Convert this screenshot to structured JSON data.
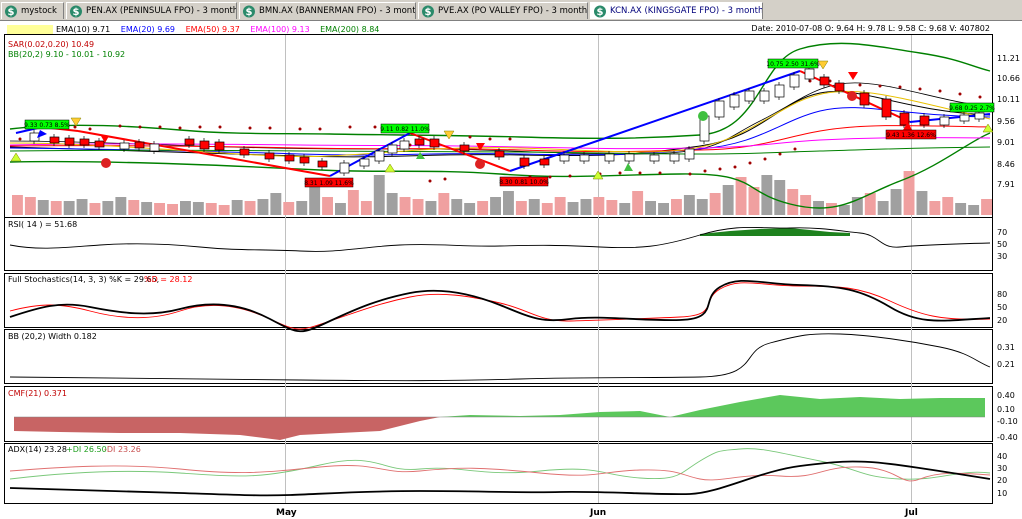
{
  "tabs": [
    {
      "label": "mystock",
      "active": false
    },
    {
      "label": "PEN.AX (PENINSULA FPO) - 3 months Daily",
      "active": false
    },
    {
      "label": "BMN.AX (BANNERMAN FPO) - 3 months Daily",
      "active": false
    },
    {
      "label": "PVE.AX (PO VALLEY FPO) - 3 months Daily",
      "active": false
    },
    {
      "label": "KCN.AX (KINGSGATE FPO) - 3 months Daily",
      "active": true
    }
  ],
  "date_readout": "Date: 2010-07-08 O: 9.64 H: 9.78 L: 9.58 C: 9.68 V: 407802",
  "main_panel": {
    "legend_row1": [
      {
        "text": "",
        "color": "#c8b400"
      },
      {
        "text": "EMA(10) 9.71",
        "color": "#000000"
      },
      {
        "text": "EMA(20) 9.69",
        "color": "#0000ff"
      },
      {
        "text": "EMA(50) 9.37",
        "color": "#ff0000"
      },
      {
        "text": "EMA(100) 9.13",
        "color": "#ff00ff"
      },
      {
        "text": "EMA(200) 8.84",
        "color": "#008000"
      }
    ],
    "legend_sar": "SAR(0.02,0.20) 10.49",
    "legend_bb": "BB(20,2) 9.10 - 10.01 - 10.92",
    "price_ticks": [
      "11.21",
      "10.66",
      "10.11",
      "9.56",
      "9.01",
      "8.46",
      "7.91"
    ],
    "trade_boxes": [
      {
        "text": "9.33 0.73 8.5%",
        "color": "green"
      },
      {
        "text": "9.11 0.82 11.0%",
        "color": "green"
      },
      {
        "text": "8.31 1.09 11.6%",
        "color": "red"
      },
      {
        "text": "8.30 0.81 10.0%",
        "color": "red"
      },
      {
        "text": "10.75 2.50 31.6%",
        "color": "green"
      },
      {
        "text": "9.68 0.25 2.7%",
        "color": "green"
      },
      {
        "text": "9.43 1.36 12.6%",
        "color": "red"
      }
    ]
  },
  "rsi_panel": {
    "title": "RSI( 14 ) = 51.68",
    "ticks": [
      "70",
      "50",
      "30"
    ]
  },
  "stoch_panel": {
    "title_k": "Full Stochastics(14, 3, 3) %K = 29.65,",
    "title_d": "%D = 28.12",
    "ticks": [
      "80",
      "50",
      "20"
    ]
  },
  "bbw_panel": {
    "title": "BB (20,2) Width 0.182",
    "ticks": [
      "0.31",
      "0.21"
    ]
  },
  "cmf_panel": {
    "title": "CMF(21) 0.371",
    "ticks": [
      "0.40",
      "0.10",
      "-0.10",
      "-0.40"
    ]
  },
  "adx_panel": {
    "title": "ADX(14) 23.28",
    "plus": "+DI 26.50",
    "minus": "-DI 23.26",
    "ticks": [
      "40",
      "30",
      "20",
      "10"
    ]
  },
  "x_axis": [
    "May",
    "Jun",
    "Jul"
  ],
  "colors": {
    "up_candle": "#ffffff",
    "down_candle": "#ff0000",
    "volume_up": "#a0a0a0",
    "volume_down": "#f0a0a0",
    "cmf_pos": "#5cc85c",
    "cmf_neg": "#c86464",
    "rsi_fill": "#1e821e"
  }
}
